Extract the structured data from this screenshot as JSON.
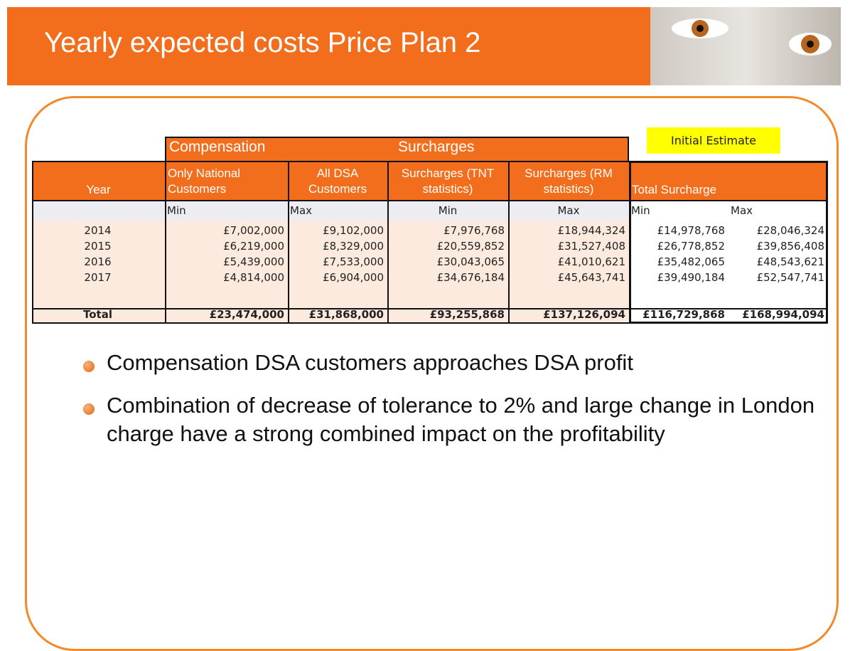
{
  "title": "Yearly expected costs Price Plan 2",
  "table": {
    "groups": [
      "Compensation",
      "Surcharges"
    ],
    "estimate_label": "Initial Estimate",
    "columns": [
      "Year",
      "Only National Customers",
      "All DSA Customers",
      "Surcharges (TNT statistics)",
      "Surcharges (RM statistics)",
      "Total Surcharge"
    ],
    "subheader": [
      "Min",
      "Max",
      "Min",
      "Max",
      "Min",
      "Max"
    ],
    "rows": [
      [
        "2014",
        "£7,002,000",
        "£9,102,000",
        "£7,976,768",
        "£18,944,324",
        "£14,978,768",
        "£28,046,324"
      ],
      [
        "2015",
        "£6,219,000",
        "£8,329,000",
        "£20,559,852",
        "£31,527,408",
        "£26,778,852",
        "£39,856,408"
      ],
      [
        "2016",
        "£5,439,000",
        "£7,533,000",
        "£30,043,065",
        "£41,010,621",
        "£35,482,065",
        "£48,543,621"
      ],
      [
        "2017",
        "£4,814,000",
        "£6,904,000",
        "£34,676,184",
        "£45,643,741",
        "£39,490,184",
        "£52,547,741"
      ],
      [
        "Total",
        "£23,474,000",
        "£31,868,000",
        "£93,255,868",
        "£137,126,094",
        "£116,729,868",
        "£168,994,094"
      ]
    ]
  },
  "bullets": [
    "Compensation DSA customers approaches DSA profit",
    "Combination of decrease of tolerance to 2% and large change in London charge have a strong combined impact on the profitability"
  ]
}
